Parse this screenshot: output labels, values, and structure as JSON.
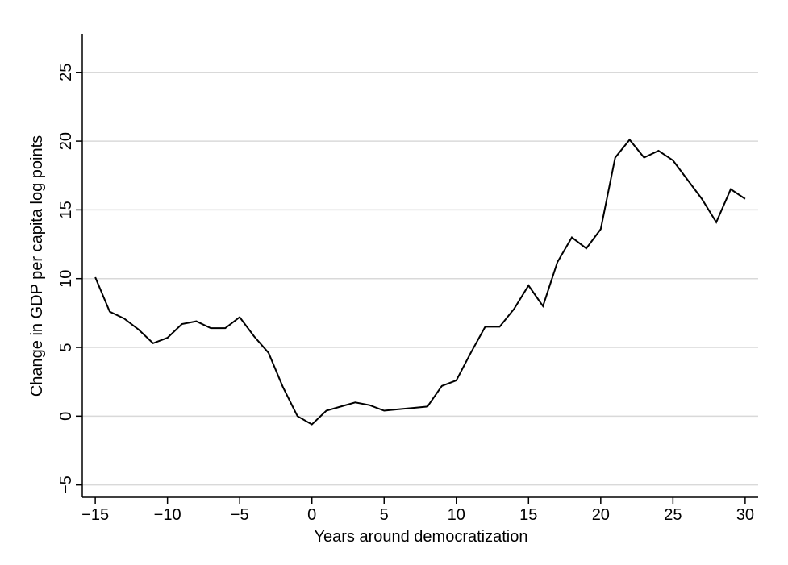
{
  "chart_data": {
    "type": "line",
    "x_label": "Years around democratization",
    "y_label": "Change in GDP per capita log points",
    "x": [
      -15,
      -14,
      -13,
      -12,
      -11,
      -10,
      -9,
      -8,
      -7,
      -6,
      -5,
      -4,
      -3,
      -2,
      -1,
      0,
      1,
      2,
      3,
      4,
      5,
      6,
      7,
      8,
      9,
      10,
      11,
      12,
      13,
      14,
      15,
      16,
      17,
      18,
      19,
      20,
      21,
      22,
      23,
      24,
      25,
      26,
      27,
      28,
      29,
      30
    ],
    "series": [
      {
        "color": "#000000",
        "values": [
          10.1,
          7.6,
          7.1,
          6.3,
          5.3,
          5.7,
          6.7,
          6.9,
          6.4,
          6.4,
          7.2,
          5.8,
          4.6,
          2.1,
          0.0,
          -0.6,
          0.4,
          0.7,
          1.0,
          0.8,
          0.4,
          0.5,
          0.6,
          0.7,
          2.2,
          2.6,
          4.6,
          6.5,
          6.5,
          7.8,
          9.5,
          8.0,
          11.2,
          13.0,
          12.2,
          13.6,
          18.8,
          20.1,
          18.8,
          19.3,
          18.6,
          17.2,
          15.8,
          14.1,
          16.5,
          15.8
        ]
      }
    ],
    "xlim": [
      -15.9,
      30.9
    ],
    "ylim": [
      -5.9,
      27.8
    ],
    "xticks": [
      {
        "value": -15,
        "label": "−15"
      },
      {
        "value": -10,
        "label": "−10"
      },
      {
        "value": -5,
        "label": "−5"
      },
      0,
      5,
      10,
      15,
      20,
      25,
      30
    ],
    "yticks": [
      {
        "value": -5,
        "label": "−5"
      },
      0,
      5,
      10,
      15,
      20,
      25
    ],
    "grid": true
  }
}
